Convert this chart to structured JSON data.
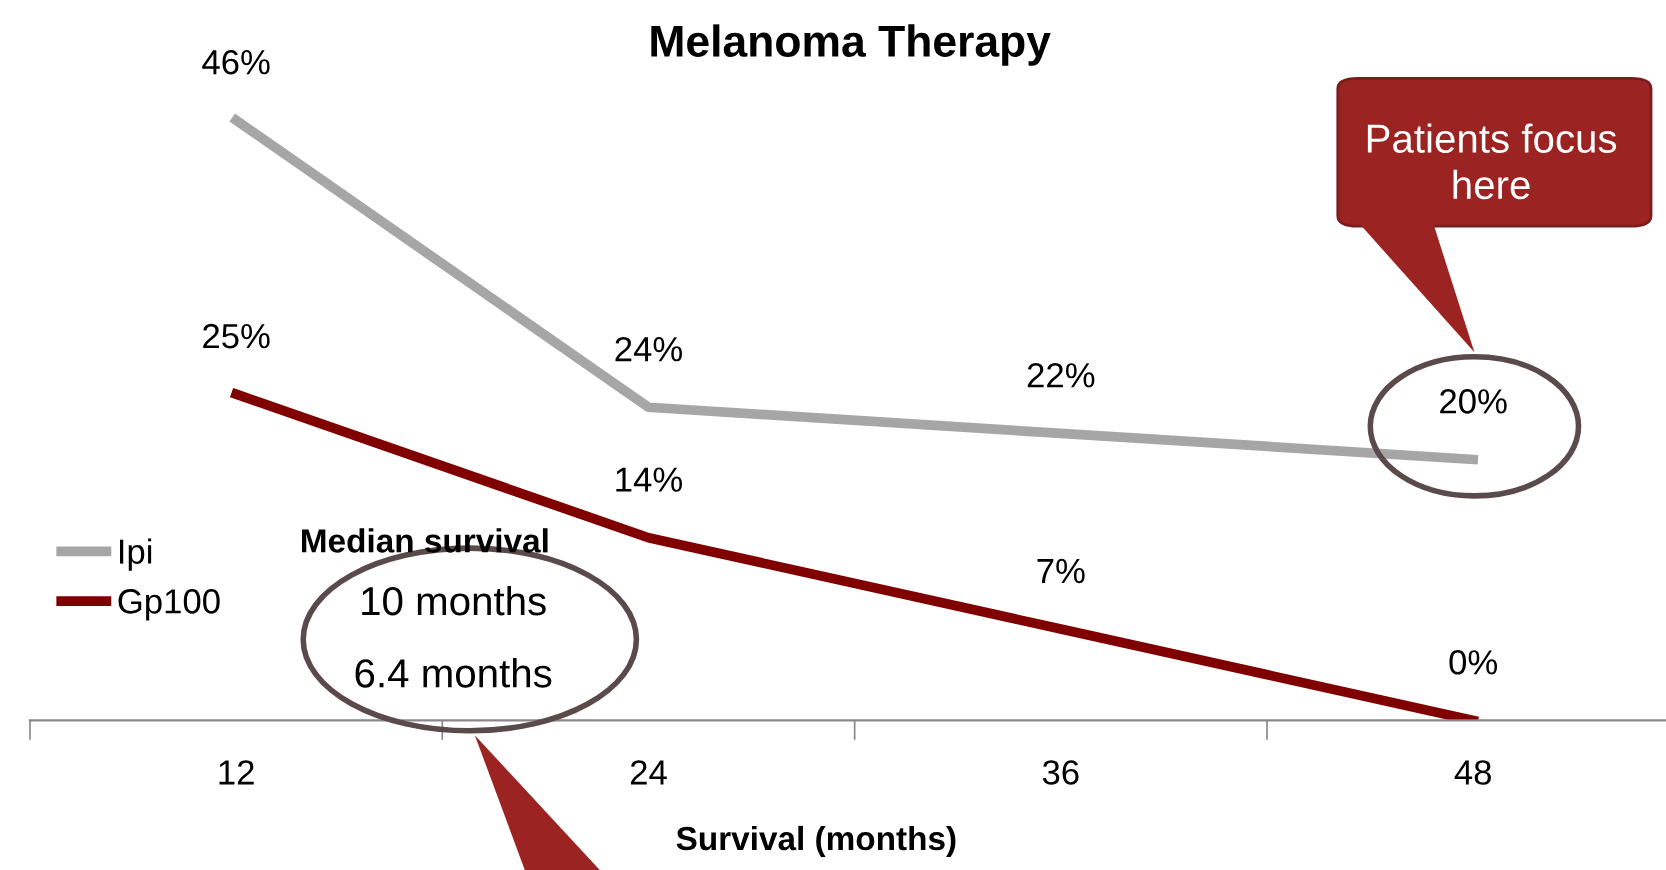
{
  "chart_data": {
    "type": "line",
    "title": "Melanoma Therapy",
    "xlabel": "Survival (months)",
    "categories": [
      "12",
      "24",
      "36",
      "48"
    ],
    "series": [
      {
        "name": "Ipi",
        "color": "#a6a6a6",
        "values": [
          46,
          24,
          22,
          20
        ],
        "value_labels": [
          "46%",
          "24%",
          "22%",
          "20%"
        ]
      },
      {
        "name": "Gp100",
        "color": "#800000",
        "values": [
          25,
          14,
          7,
          0
        ],
        "value_labels": [
          "25%",
          "14%",
          "7%",
          "0%"
        ]
      }
    ],
    "legend": "left",
    "marker": "none",
    "line_style": "solid",
    "grid": false,
    "annotations": [
      "Median survival",
      "10 months",
      "6.4 months",
      "Patients focus here"
    ]
  }
}
